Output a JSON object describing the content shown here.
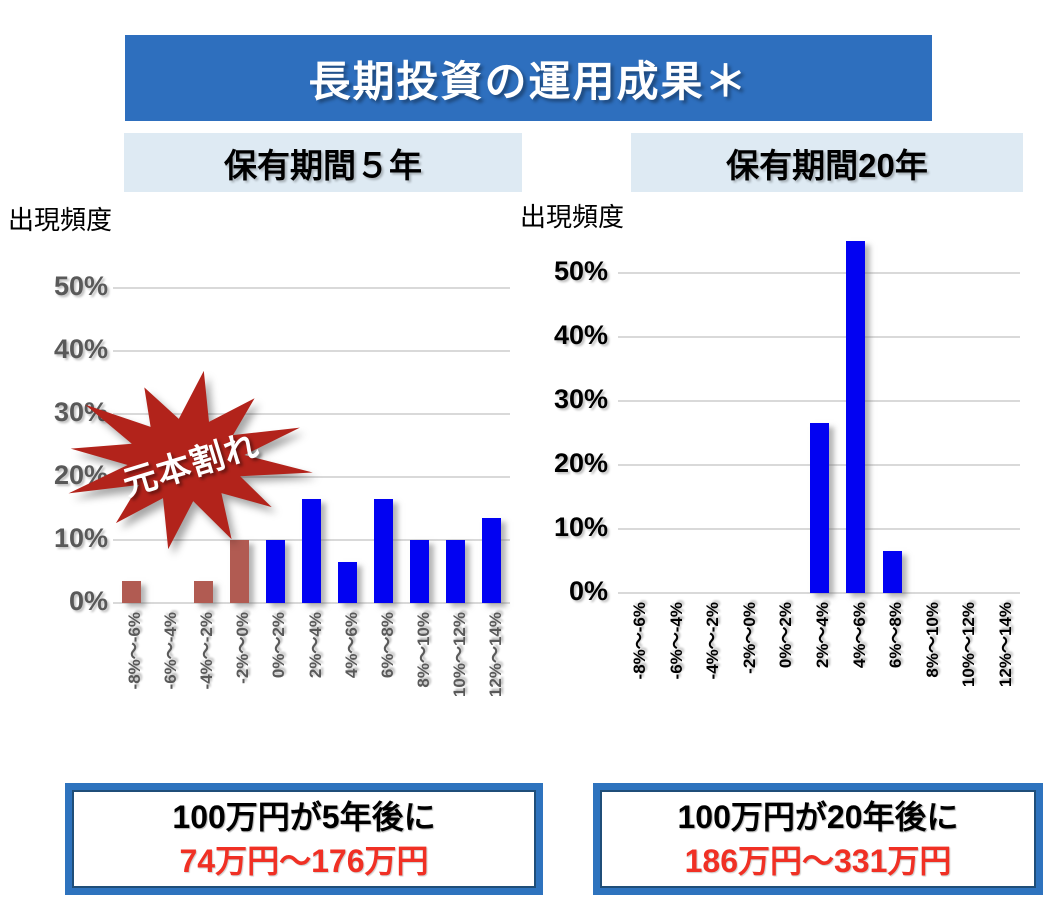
{
  "title": "長期投資の運用成果＊",
  "colors": {
    "banner": "#2E6FBE",
    "banner_text": "#FFFFFF",
    "subtitle_bg": "#DEEAF3",
    "gridline": "#D9D9D9",
    "box_border": "#2E73BE",
    "box_border_inner": "#1F4E79",
    "highlight_red": "#F03024",
    "bar_blue": "#0202F2",
    "bar_red": "#B15B52",
    "starburst_red": "#B2231B",
    "tick_gray": "#595959"
  },
  "charts": [
    {
      "header": "保有期間５年",
      "ylabel": "出現頻度"
    },
    {
      "header": "保有期間20年",
      "ylabel": "出現頻度"
    }
  ],
  "chart_data": [
    {
      "type": "bar",
      "title": "保有期間５年",
      "xlabel": "",
      "ylabel": "出現頻度",
      "categories": [
        "-8%〜-6%",
        "-6%〜-4%",
        "-4%〜-2%",
        "-2%〜0%",
        "0%〜2%",
        "2%〜4%",
        "4%〜6%",
        "6%〜8%",
        "8%〜10%",
        "10%〜12%",
        "12%〜14%"
      ],
      "values": [
        3.5,
        0,
        3.5,
        10,
        10,
        16.5,
        6.5,
        16.5,
        10,
        10,
        13.5
      ],
      "yticks": [
        "0%",
        "10%",
        "20%",
        "30%",
        "40%",
        "50%"
      ],
      "ylim": [
        0,
        55
      ],
      "grid": true,
      "legend": false,
      "annotation": "元本割れ",
      "tick_color": "#595959",
      "bar_colors": [
        "#B15B52",
        "#B15B52",
        "#B15B52",
        "#B15B52",
        "#0202F2",
        "#0202F2",
        "#0202F2",
        "#0202F2",
        "#0202F2",
        "#0202F2",
        "#0202F2"
      ]
    },
    {
      "type": "bar",
      "title": "保有期間20年",
      "xlabel": "",
      "ylabel": "出現頻度",
      "categories": [
        "-8%〜-6%",
        "-6%〜-4%",
        "-4%〜-2%",
        "-2%〜0%",
        "0%〜2%",
        "2%〜4%",
        "4%〜6%",
        "6%〜8%",
        "8%〜10%",
        "10%〜12%",
        "12%〜14%"
      ],
      "values": [
        0,
        0,
        0,
        0,
        0,
        26.5,
        55,
        6.5,
        0,
        0,
        0
      ],
      "yticks": [
        "0%",
        "10%",
        "20%",
        "30%",
        "40%",
        "50%"
      ],
      "ylim": [
        0,
        55
      ],
      "grid": true,
      "legend": false,
      "annotation": "",
      "tick_color": "#000000",
      "bar_colors": [
        "#0202F2",
        "#0202F2",
        "#0202F2",
        "#0202F2",
        "#0202F2",
        "#0202F2",
        "#0202F2",
        "#0202F2",
        "#0202F2",
        "#0202F2",
        "#0202F2"
      ]
    }
  ],
  "starburst": {
    "label": "元本割れ",
    "fill": "#B2231B",
    "text_color": "#FFFFFF"
  },
  "result_boxes": [
    {
      "line1": "100万円が5年後に",
      "line2": "74万円〜176万円"
    },
    {
      "line1": "100万円が20年後に",
      "line2": "186万円〜331万円"
    }
  ]
}
